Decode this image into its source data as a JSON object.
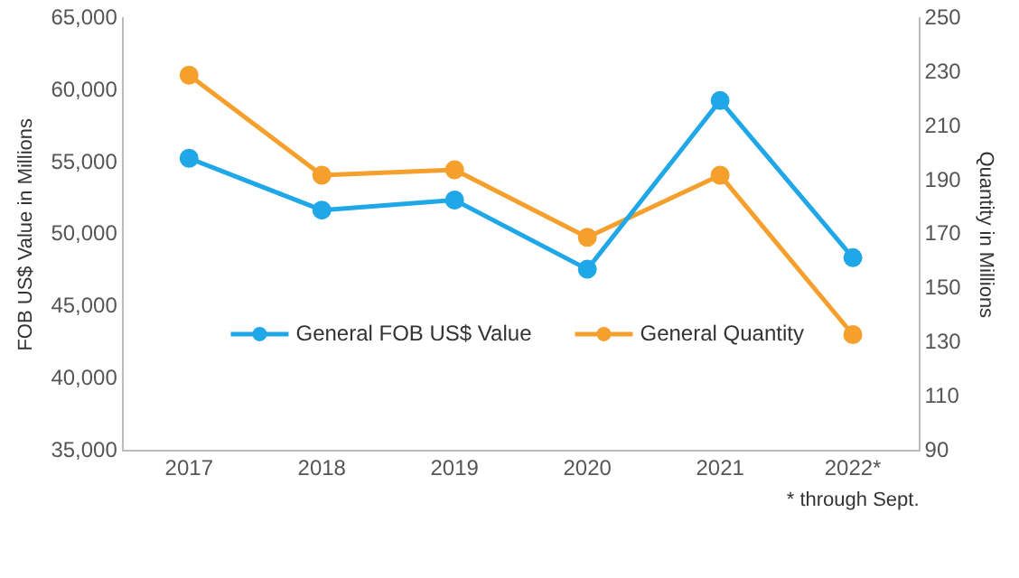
{
  "chart_data": {
    "type": "line",
    "categories": [
      "2017",
      "2018",
      "2019",
      "2020",
      "2021",
      "2022*"
    ],
    "ylabel": "FOB US$ Value in Millions",
    "y2label": "Quantity in Millions",
    "series": [
      {
        "name": "General FOB US$ Value",
        "color": "#1fa7e8",
        "values": [
          55300,
          51700,
          52400,
          47600,
          59300,
          48400
        ]
      },
      {
        "name": "General Quantity",
        "color": "#f5a02c",
        "axis": "y2",
        "values": [
          229,
          192,
          194,
          169,
          192,
          133
        ]
      }
    ],
    "ylim": [
      35000,
      65000
    ],
    "yticks": [
      {
        "value": 35000,
        "label": "35,000"
      },
      {
        "value": 40000,
        "label": "40,000"
      },
      {
        "value": 45000,
        "label": "45,000"
      },
      {
        "value": 50000,
        "label": "50,000"
      },
      {
        "value": 55000,
        "label": "55,000"
      },
      {
        "value": 60000,
        "label": "60,000"
      },
      {
        "value": 65000,
        "label": "65,000"
      }
    ],
    "y2lim": [
      90,
      250
    ],
    "y2ticks": [
      90,
      110,
      130,
      150,
      170,
      190,
      210,
      230,
      250
    ],
    "annotations": [
      "* through Sept."
    ],
    "legend": "bottom",
    "marker": "circle",
    "line_style": "solid",
    "grid": false
  }
}
